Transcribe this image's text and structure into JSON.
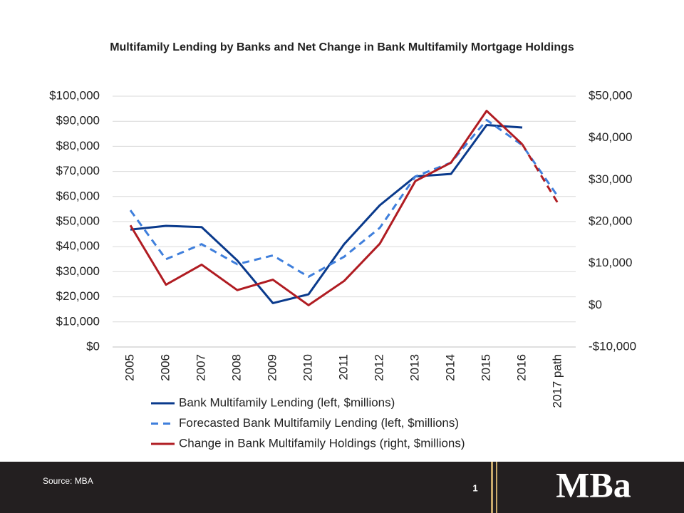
{
  "chart_data": {
    "type": "line",
    "title": "Multifamily Lending by Banks and Net Change in Bank Multifamily Mortgage Holdings",
    "categories": [
      "2005",
      "2006",
      "2007",
      "2008",
      "2009",
      "2010",
      "2011",
      "2012",
      "2013",
      "2014",
      "2015",
      "2016",
      "2017 path"
    ],
    "series": [
      {
        "name": "Bank Multifamily Lending (left, $millions)",
        "color": "#0a3a8c",
        "dash": "solid",
        "axis": "y",
        "values": [
          46800,
          48300,
          47800,
          34500,
          17500,
          21000,
          41000,
          56500,
          68000,
          69000,
          88500,
          87500,
          null
        ]
      },
      {
        "name": "Forecasted Bank Multifamily Lending (left, $millions)",
        "color": "#3f7fdc",
        "dash": "dashed",
        "axis": "y",
        "values": [
          54500,
          35000,
          41000,
          33000,
          36500,
          28000,
          36000,
          47500,
          68000,
          73500,
          90500,
          80500,
          60000
        ]
      },
      {
        "name": "Change in Bank Multifamily Holdings (right, $millions)",
        "color": "#b01c22",
        "dash": "solid",
        "axis": "y2",
        "values": [
          19100,
          4900,
          9700,
          3600,
          6100,
          0,
          5800,
          14700,
          29700,
          34100,
          46500,
          38500,
          24400
        ]
      }
    ],
    "ylim": [
      0,
      100000
    ],
    "yticks": [
      {
        "value": 0,
        "label": "$0"
      },
      {
        "value": 10000,
        "label": "$10,000"
      },
      {
        "value": 20000,
        "label": "$20,000"
      },
      {
        "value": 30000,
        "label": "$30,000"
      },
      {
        "value": 40000,
        "label": "$40,000"
      },
      {
        "value": 50000,
        "label": "$50,000"
      },
      {
        "value": 60000,
        "label": "$60,000"
      },
      {
        "value": 70000,
        "label": "$70,000"
      },
      {
        "value": 80000,
        "label": "$80,000"
      },
      {
        "value": 90000,
        "label": "$90,000"
      },
      {
        "value": 100000,
        "label": "$100,000"
      }
    ],
    "y2lim": [
      -10000,
      50000
    ],
    "y2ticks": [
      {
        "value": -10000,
        "label": "-$10,000"
      },
      {
        "value": 0,
        "label": "$0"
      },
      {
        "value": 10000,
        "label": "$10,000"
      },
      {
        "value": 20000,
        "label": "$20,000"
      },
      {
        "value": 30000,
        "label": "$30,000"
      },
      {
        "value": 40000,
        "label": "$40,000"
      },
      {
        "value": 50000,
        "label": "$50,000"
      }
    ],
    "grid": true
  },
  "footer": {
    "source": "Source: MBA",
    "page_number": "1",
    "logo": "MBa"
  }
}
